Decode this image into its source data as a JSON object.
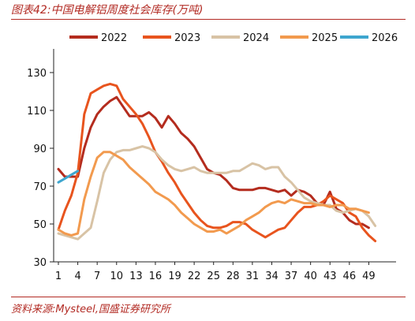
{
  "page": {
    "title": "图表42:中国电解铝周度社会库存(万吨)",
    "footer": "资料来源:Mysteel,国盛证券研究所"
  },
  "chart_data": {
    "type": "line",
    "xlabel": "",
    "ylabel": "",
    "ylim": [
      30,
      140
    ],
    "xlim": [
      1,
      52
    ],
    "x_ticks": [
      1,
      4,
      7,
      10,
      13,
      16,
      19,
      22,
      25,
      28,
      31,
      34,
      37,
      40,
      43,
      46,
      49
    ],
    "y_ticks": [
      30,
      50,
      70,
      90,
      110,
      130
    ],
    "grid": false,
    "legend_position": "top",
    "series": [
      {
        "name": "2022",
        "color": "#b42c1e",
        "x": [
          1,
          2,
          3,
          4,
          5,
          6,
          7,
          8,
          9,
          10,
          11,
          12,
          13,
          14,
          15,
          16,
          17,
          18,
          19,
          20,
          21,
          22,
          23,
          24,
          25,
          26,
          27,
          28,
          29,
          30,
          31,
          32,
          33,
          34,
          35,
          36,
          37,
          38,
          39,
          40,
          41,
          42,
          43,
          44,
          45,
          46,
          47,
          48,
          49
        ],
        "values": [
          79,
          75,
          75,
          75,
          90,
          101,
          108,
          112,
          115,
          117,
          112,
          107,
          107,
          107,
          109,
          106,
          101,
          107,
          103,
          98,
          95,
          91,
          85,
          79,
          77,
          76,
          73,
          69,
          68,
          68,
          68,
          69,
          69,
          68,
          67,
          68,
          65,
          68,
          67,
          65,
          61,
          60,
          67,
          58,
          56,
          52,
          50,
          50,
          48
        ]
      },
      {
        "name": "2023",
        "color": "#e8541e",
        "x": [
          1,
          2,
          3,
          4,
          5,
          6,
          7,
          8,
          9,
          10,
          11,
          12,
          13,
          14,
          15,
          16,
          17,
          18,
          19,
          20,
          21,
          22,
          23,
          24,
          25,
          26,
          27,
          28,
          29,
          30,
          31,
          32,
          33,
          34,
          35,
          36,
          37,
          38,
          39,
          40,
          41,
          42,
          43,
          44,
          45,
          46,
          47,
          48,
          49,
          50
        ],
        "values": [
          47,
          57,
          65,
          77,
          108,
          119,
          121,
          123,
          124,
          123,
          116,
          112,
          108,
          103,
          96,
          88,
          83,
          77,
          72,
          66,
          61,
          56,
          52,
          49,
          48,
          48,
          49,
          51,
          51,
          50,
          47,
          45,
          43,
          45,
          47,
          48,
          52,
          56,
          59,
          59,
          60,
          62,
          65,
          63,
          61,
          56,
          54,
          48,
          44,
          41
        ]
      },
      {
        "name": "2024",
        "color": "#d8c3a5",
        "x": [
          1,
          2,
          3,
          4,
          5,
          6,
          7,
          8,
          9,
          10,
          11,
          12,
          13,
          14,
          15,
          16,
          17,
          18,
          19,
          20,
          21,
          22,
          23,
          24,
          25,
          26,
          27,
          28,
          29,
          30,
          31,
          32,
          33,
          34,
          35,
          36,
          37,
          38,
          39,
          40,
          41,
          42,
          43,
          44,
          45,
          46,
          47,
          48,
          49,
          50
        ],
        "values": [
          45,
          44,
          43,
          42,
          45,
          48,
          62,
          77,
          84,
          88,
          89,
          89,
          90,
          91,
          90,
          88,
          84,
          81,
          79,
          78,
          79,
          80,
          78,
          77,
          77,
          77,
          77,
          78,
          78,
          80,
          82,
          81,
          79,
          80,
          80,
          75,
          72,
          68,
          64,
          62,
          61,
          60,
          60,
          57,
          56,
          57,
          58,
          57,
          54,
          49
        ]
      },
      {
        "name": "2025",
        "color": "#f29a4e",
        "x": [
          1,
          2,
          3,
          4,
          5,
          6,
          7,
          8,
          9,
          10,
          11,
          12,
          13,
          14,
          15,
          16,
          17,
          18,
          19,
          20,
          21,
          22,
          23,
          24,
          25,
          26,
          27,
          28,
          29,
          30,
          31,
          32,
          33,
          34,
          35,
          36,
          37,
          38,
          39,
          40,
          41,
          42,
          43,
          44,
          45,
          46,
          47,
          48,
          49
        ],
        "values": [
          47,
          45,
          44,
          45,
          63,
          75,
          85,
          88,
          88,
          86,
          84,
          80,
          77,
          74,
          71,
          67,
          65,
          63,
          60,
          56,
          53,
          50,
          48,
          46,
          46,
          47,
          45,
          47,
          49,
          52,
          54,
          56,
          59,
          61,
          62,
          61,
          63,
          62,
          61,
          61,
          60,
          60,
          59,
          60,
          60,
          58,
          58,
          57,
          56
        ]
      },
      {
        "name": "2026",
        "color": "#3ea6cf",
        "x": [
          1,
          2,
          3,
          4
        ],
        "values": [
          72,
          74,
          76,
          78
        ]
      }
    ]
  }
}
